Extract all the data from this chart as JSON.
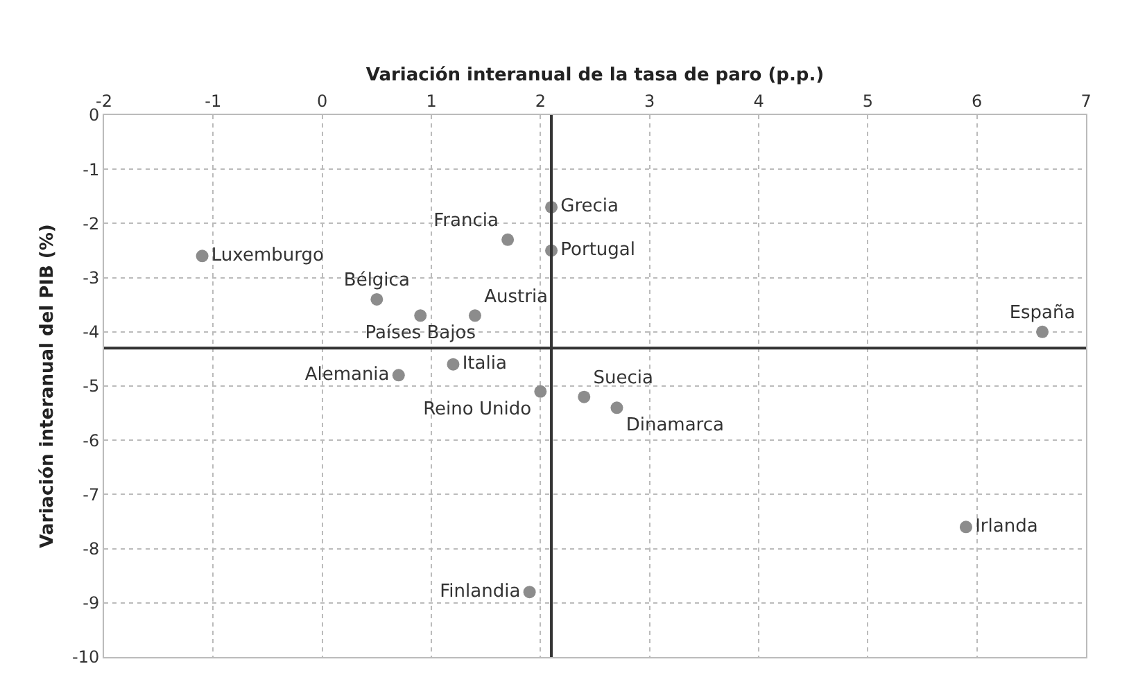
{
  "chart_data": {
    "type": "scatter",
    "xlabel": "Variación interanual de la tasa de paro (p.p.)",
    "ylabel": "Variación interanual del PIB (%)",
    "x": [
      2.1,
      2.1,
      1.7,
      -1.1,
      0.5,
      0.9,
      1.4,
      6.6,
      1.2,
      0.7,
      2.0,
      2.4,
      2.7,
      5.9,
      1.9
    ],
    "values": [
      -1.7,
      -2.5,
      -2.3,
      -2.6,
      -3.4,
      -3.7,
      -3.7,
      -4.0,
      -4.6,
      -4.8,
      -5.1,
      -5.2,
      -5.4,
      -7.6,
      -8.8
    ],
    "value_labels": [
      "Grecia",
      "Portugal",
      "Francia",
      "Luxemburgo",
      "Bélgica",
      "Países Bajos",
      "Austria",
      "España",
      "Italia",
      "Alemania",
      "Reino Unido",
      "Suecia",
      "Dinamarca",
      "Irlanda",
      "Finlandia"
    ],
    "color": "#8c8c8c",
    "marker": "circle",
    "xlim": [
      -2,
      7
    ],
    "xticks": [
      -2,
      -1,
      0,
      1,
      2,
      3,
      4,
      5,
      6,
      7
    ],
    "ylim": [
      -10,
      0
    ],
    "yticks": [
      -10,
      -9,
      -8,
      -7,
      -6,
      -5,
      -4,
      -3,
      -2,
      -1,
      0
    ],
    "ref_lines": [
      {
        "axis": "x",
        "value": 2.1,
        "color": "#333333"
      },
      {
        "axis": "y",
        "value": -4.3,
        "color": "#333333"
      }
    ],
    "grid": true
  }
}
